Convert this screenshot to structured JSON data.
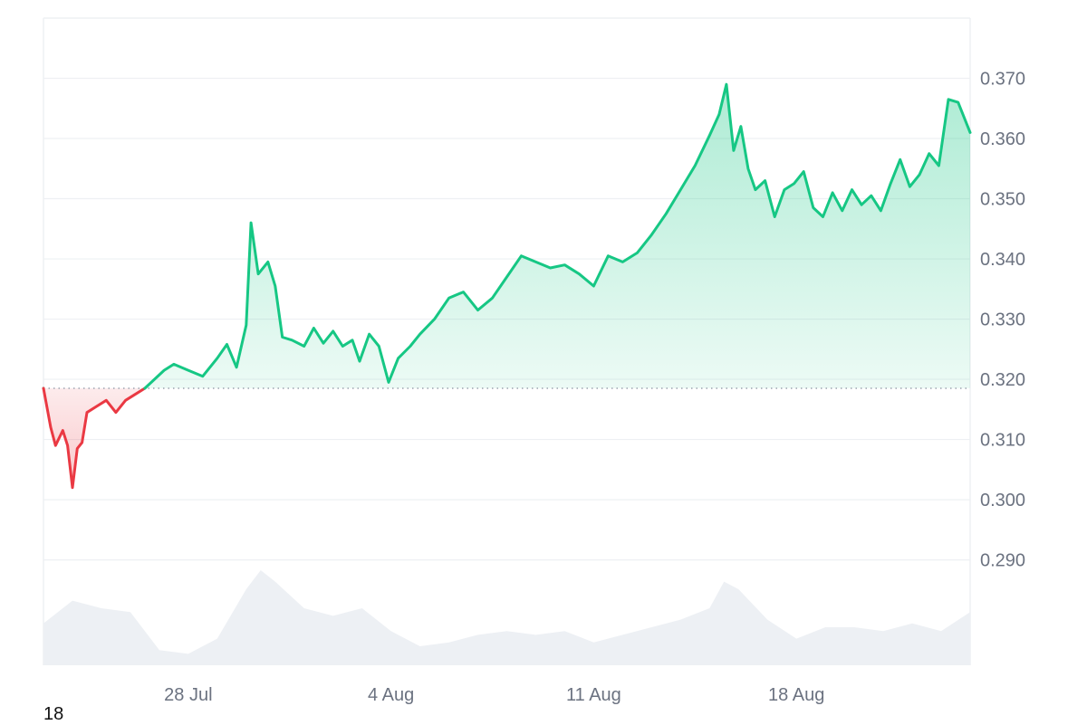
{
  "chart_data": {
    "type": "line",
    "title": "",
    "xlabel": "",
    "ylabel": "",
    "x_start": "2025-07-23",
    "x_end": "2025-08-24",
    "x_tick_labels": [
      "28 Jul",
      "4 Aug",
      "11 Aug",
      "18 Aug"
    ],
    "y_tick_labels": [
      "0.370",
      "0.360",
      "0.350",
      "0.340",
      "0.330",
      "0.320",
      "0.310",
      "0.300",
      "0.290"
    ],
    "ylim": [
      0.2725,
      0.38
    ],
    "baseline": 0.3185,
    "grid": true,
    "colors": {
      "above_line": "#16c784",
      "above_fill": "#16c784",
      "below_line": "#ea3943",
      "below_fill": "#ea3943",
      "baseline_dots": "#9ca3af",
      "grid": "#eef0f3",
      "volume": "#edf0f4"
    },
    "series": [
      {
        "values": [
          [
            "2025-07-23T00:00",
            0.3185
          ],
          [
            "2025-07-23T06:00",
            0.312
          ],
          [
            "2025-07-23T10:00",
            0.309
          ],
          [
            "2025-07-23T16:00",
            0.3115
          ],
          [
            "2025-07-23T20:00",
            0.309
          ],
          [
            "2025-07-24T00:00",
            0.302
          ],
          [
            "2025-07-24T04:00",
            0.3085
          ],
          [
            "2025-07-24T08:00",
            0.3095
          ],
          [
            "2025-07-24T12:00",
            0.3145
          ],
          [
            "2025-07-24T20:00",
            0.3155
          ],
          [
            "2025-07-25T04:00",
            0.3165
          ],
          [
            "2025-07-25T12:00",
            0.3145
          ],
          [
            "2025-07-25T20:00",
            0.3165
          ],
          [
            "2025-07-26T04:00",
            0.3175
          ],
          [
            "2025-07-26T12:00",
            0.3185
          ],
          [
            "2025-07-26T20:00",
            0.32
          ],
          [
            "2025-07-27T04:00",
            0.3215
          ],
          [
            "2025-07-27T12:00",
            0.3225
          ],
          [
            "2025-07-28T00:00",
            0.3215
          ],
          [
            "2025-07-28T12:00",
            0.3205
          ],
          [
            "2025-07-29T00:00",
            0.3235
          ],
          [
            "2025-07-29T08:00",
            0.3258
          ],
          [
            "2025-07-29T16:00",
            0.322
          ],
          [
            "2025-07-30T00:00",
            0.329
          ],
          [
            "2025-07-30T04:00",
            0.346
          ],
          [
            "2025-07-30T10:00",
            0.3375
          ],
          [
            "2025-07-30T18:00",
            0.3395
          ],
          [
            "2025-07-31T00:00",
            0.3355
          ],
          [
            "2025-07-31T06:00",
            0.327
          ],
          [
            "2025-07-31T14:00",
            0.3265
          ],
          [
            "2025-08-01T00:00",
            0.3255
          ],
          [
            "2025-08-01T08:00",
            0.3285
          ],
          [
            "2025-08-01T16:00",
            0.326
          ],
          [
            "2025-08-02T00:00",
            0.328
          ],
          [
            "2025-08-02T08:00",
            0.3255
          ],
          [
            "2025-08-02T16:00",
            0.3265
          ],
          [
            "2025-08-02T22:00",
            0.323
          ],
          [
            "2025-08-03T06:00",
            0.3275
          ],
          [
            "2025-08-03T14:00",
            0.3255
          ],
          [
            "2025-08-03T22:00",
            0.3195
          ],
          [
            "2025-08-04T06:00",
            0.3235
          ],
          [
            "2025-08-04T16:00",
            0.3255
          ],
          [
            "2025-08-05T00:00",
            0.3275
          ],
          [
            "2025-08-05T12:00",
            0.33
          ],
          [
            "2025-08-06T00:00",
            0.3335
          ],
          [
            "2025-08-06T12:00",
            0.3345
          ],
          [
            "2025-08-07T00:00",
            0.3315
          ],
          [
            "2025-08-07T12:00",
            0.3335
          ],
          [
            "2025-08-08T00:00",
            0.337
          ],
          [
            "2025-08-08T12:00",
            0.3405
          ],
          [
            "2025-08-09T00:00",
            0.3395
          ],
          [
            "2025-08-09T12:00",
            0.3385
          ],
          [
            "2025-08-10T00:00",
            0.339
          ],
          [
            "2025-08-10T12:00",
            0.3375
          ],
          [
            "2025-08-11T00:00",
            0.3355
          ],
          [
            "2025-08-11T12:00",
            0.3405
          ],
          [
            "2025-08-12T00:00",
            0.3395
          ],
          [
            "2025-08-12T12:00",
            0.341
          ],
          [
            "2025-08-13T00:00",
            0.344
          ],
          [
            "2025-08-13T12:00",
            0.3475
          ],
          [
            "2025-08-14T00:00",
            0.3515
          ],
          [
            "2025-08-14T12:00",
            0.3555
          ],
          [
            "2025-08-15T00:00",
            0.3605
          ],
          [
            "2025-08-15T08:00",
            0.364
          ],
          [
            "2025-08-15T14:00",
            0.369
          ],
          [
            "2025-08-15T20:00",
            0.358
          ],
          [
            "2025-08-16T02:00",
            0.362
          ],
          [
            "2025-08-16T08:00",
            0.355
          ],
          [
            "2025-08-16T14:00",
            0.3515
          ],
          [
            "2025-08-16T22:00",
            0.353
          ],
          [
            "2025-08-17T06:00",
            0.347
          ],
          [
            "2025-08-17T14:00",
            0.3515
          ],
          [
            "2025-08-17T22:00",
            0.3525
          ],
          [
            "2025-08-18T06:00",
            0.3545
          ],
          [
            "2025-08-18T14:00",
            0.3485
          ],
          [
            "2025-08-18T22:00",
            0.347
          ],
          [
            "2025-08-19T06:00",
            0.351
          ],
          [
            "2025-08-19T14:00",
            0.348
          ],
          [
            "2025-08-19T22:00",
            0.3515
          ],
          [
            "2025-08-20T06:00",
            0.349
          ],
          [
            "2025-08-20T14:00",
            0.3505
          ],
          [
            "2025-08-20T22:00",
            0.348
          ],
          [
            "2025-08-21T06:00",
            0.3525
          ],
          [
            "2025-08-21T14:00",
            0.3565
          ],
          [
            "2025-08-21T22:00",
            0.352
          ],
          [
            "2025-08-22T06:00",
            0.354
          ],
          [
            "2025-08-22T14:00",
            0.3575
          ],
          [
            "2025-08-22T22:00",
            0.3555
          ],
          [
            "2025-08-23T06:00",
            0.3665
          ],
          [
            "2025-08-23T14:00",
            0.366
          ],
          [
            "2025-08-24T00:00",
            0.361
          ]
        ]
      }
    ],
    "volume": [
      [
        "2025-07-23T00:00",
        0.55
      ],
      [
        "2025-07-24T00:00",
        0.85
      ],
      [
        "2025-07-25T00:00",
        0.75
      ],
      [
        "2025-07-26T00:00",
        0.7
      ],
      [
        "2025-07-27T00:00",
        0.2
      ],
      [
        "2025-07-28T00:00",
        0.15
      ],
      [
        "2025-07-29T00:00",
        0.35
      ],
      [
        "2025-07-30T00:00",
        1.0
      ],
      [
        "2025-07-30T12:00",
        1.25
      ],
      [
        "2025-07-31T00:00",
        1.1
      ],
      [
        "2025-08-01T00:00",
        0.75
      ],
      [
        "2025-08-02T00:00",
        0.65
      ],
      [
        "2025-08-03T00:00",
        0.75
      ],
      [
        "2025-08-04T00:00",
        0.45
      ],
      [
        "2025-08-05T00:00",
        0.25
      ],
      [
        "2025-08-06T00:00",
        0.3
      ],
      [
        "2025-08-07T00:00",
        0.4
      ],
      [
        "2025-08-08T00:00",
        0.45
      ],
      [
        "2025-08-09T00:00",
        0.4
      ],
      [
        "2025-08-10T00:00",
        0.45
      ],
      [
        "2025-08-11T00:00",
        0.3
      ],
      [
        "2025-08-12T00:00",
        0.4
      ],
      [
        "2025-08-13T00:00",
        0.5
      ],
      [
        "2025-08-14T00:00",
        0.6
      ],
      [
        "2025-08-15T00:00",
        0.75
      ],
      [
        "2025-08-15T12:00",
        1.1
      ],
      [
        "2025-08-16T00:00",
        1.0
      ],
      [
        "2025-08-17T00:00",
        0.6
      ],
      [
        "2025-08-18T00:00",
        0.35
      ],
      [
        "2025-08-19T00:00",
        0.5
      ],
      [
        "2025-08-20T00:00",
        0.5
      ],
      [
        "2025-08-21T00:00",
        0.45
      ],
      [
        "2025-08-22T00:00",
        0.55
      ],
      [
        "2025-08-23T00:00",
        0.45
      ],
      [
        "2025-08-24T00:00",
        0.7
      ]
    ]
  },
  "footer": {
    "page_number": "18"
  }
}
